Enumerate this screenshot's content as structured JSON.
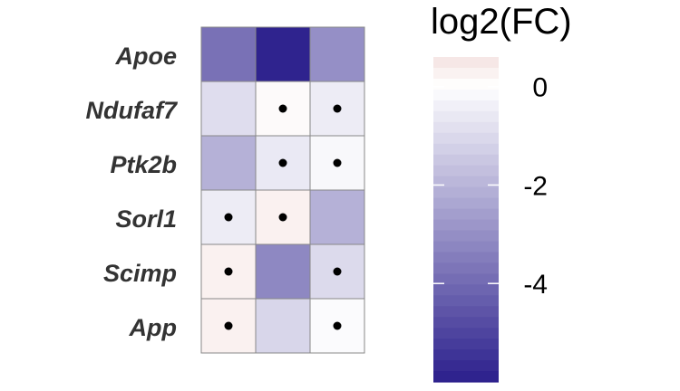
{
  "chart_data": {
    "type": "heatmap",
    "rows": [
      "Apoe",
      "Ndufaf7",
      "Ptk2b",
      "Sorl1",
      "Scimp",
      "App"
    ],
    "columns": [
      "",
      "",
      ""
    ],
    "values": [
      [
        -3.8,
        -5.9,
        -3.0
      ],
      [
        -0.9,
        0.1,
        -0.5
      ],
      [
        -2.1,
        -0.6,
        -0.2
      ],
      [
        -0.5,
        0.3,
        -2.1
      ],
      [
        0.3,
        -3.2,
        -1.0
      ],
      [
        0.3,
        -1.1,
        -0.1
      ]
    ],
    "significance_dots": [
      [
        false,
        false,
        false
      ],
      [
        false,
        true,
        true
      ],
      [
        false,
        true,
        true
      ],
      [
        true,
        true,
        false
      ],
      [
        true,
        false,
        true
      ],
      [
        true,
        false,
        true
      ]
    ],
    "colorbar": {
      "title": "log2(FC)",
      "range": [
        -6,
        0.6
      ],
      "ticks": [
        0,
        -2,
        -4
      ],
      "tick_labels": [
        "0",
        "-2",
        "-4"
      ],
      "low_color": "#2b1f8c",
      "mid_color": "#ffffff",
      "high_color": "#f4e2e0"
    },
    "grid": false
  },
  "colors": {
    "cell_border": "#888888",
    "dot": "#000000"
  }
}
